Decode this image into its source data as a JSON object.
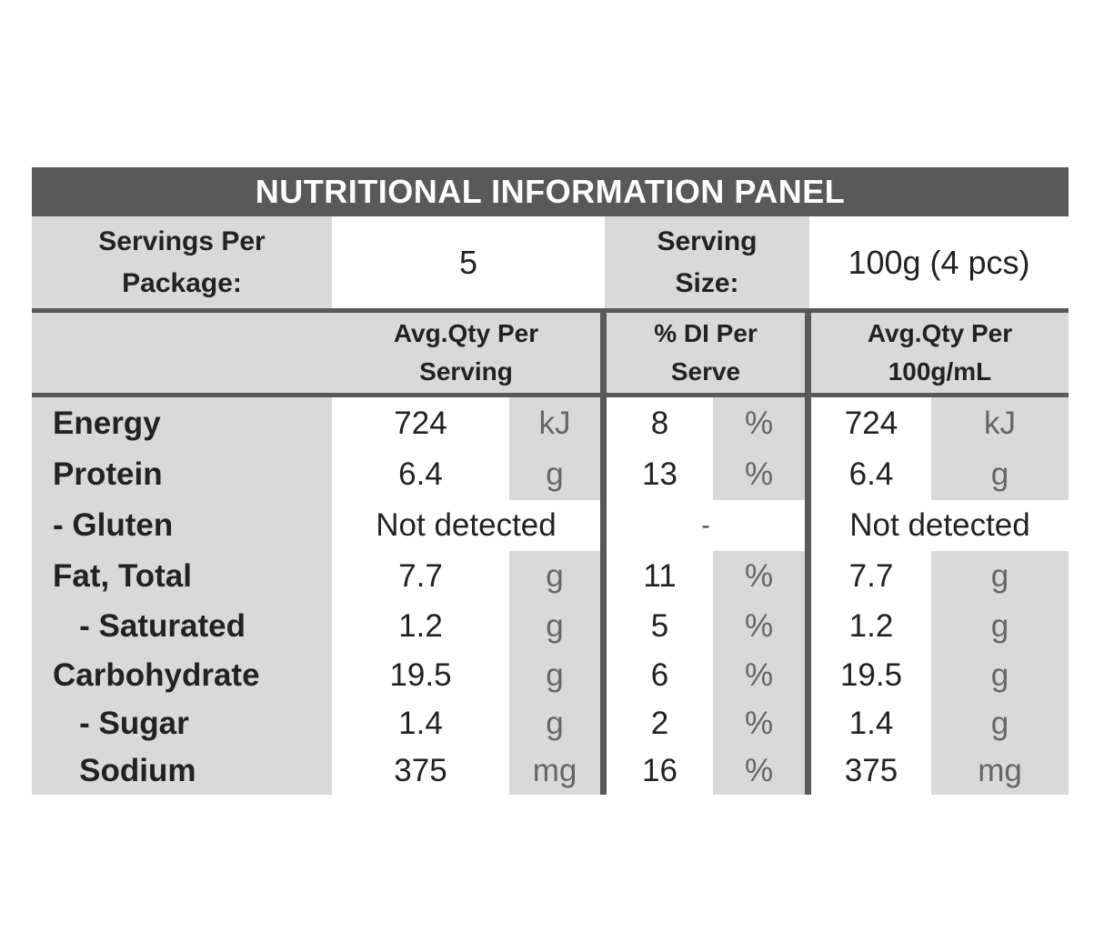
{
  "title": "NUTRITIONAL INFORMATION PANEL",
  "servings": {
    "per_package_label": "Servings Per\nPackage:",
    "per_package_value": "5",
    "serving_size_label": "Serving\nSize:",
    "serving_size_value": "100g (4 pcs)"
  },
  "columns": {
    "per_serving": "Avg.Qty Per\nServing",
    "di_per_serve": "% DI Per\nServe",
    "per_100": "Avg.Qty Per\n100g/mL"
  },
  "rows": [
    {
      "label": "Energy",
      "serv": "724",
      "serv_unit": "kJ",
      "di": "8",
      "di_unit": "%",
      "per100": "724",
      "per100_unit": "kJ"
    },
    {
      "label": "Protein",
      "serv": "6.4",
      "serv_unit": "g",
      "di": "13",
      "di_unit": "%",
      "per100": "6.4",
      "per100_unit": "g"
    },
    {
      "label": "- Gluten",
      "serv_text": "Not detected",
      "di_text": "-",
      "per100_text": "Not detected"
    },
    {
      "label": "Fat, Total",
      "serv": "7.7",
      "serv_unit": "g",
      "di": "11",
      "di_unit": "%",
      "per100": "7.7",
      "per100_unit": "g"
    },
    {
      "label": "   - Saturated",
      "serv": "1.2",
      "serv_unit": "g",
      "di": "5",
      "di_unit": "%",
      "per100": "1.2",
      "per100_unit": "g"
    },
    {
      "label": "Carbohydrate",
      "serv": "19.5",
      "serv_unit": "g",
      "di": "6",
      "di_unit": "%",
      "per100": "19.5",
      "per100_unit": "g"
    },
    {
      "label": "   - Sugar",
      "serv": "1.4",
      "serv_unit": "g",
      "di": "2",
      "di_unit": "%",
      "per100": "1.4",
      "per100_unit": "g"
    },
    {
      "label": "   Sodium",
      "serv": "375",
      "serv_unit": "mg",
      "di": "16",
      "di_unit": "%",
      "per100": "375",
      "per100_unit": "mg"
    }
  ],
  "colors": {
    "title_bg": "#595959",
    "cell_grey": "#d9d9d9",
    "divider": "#595959"
  }
}
